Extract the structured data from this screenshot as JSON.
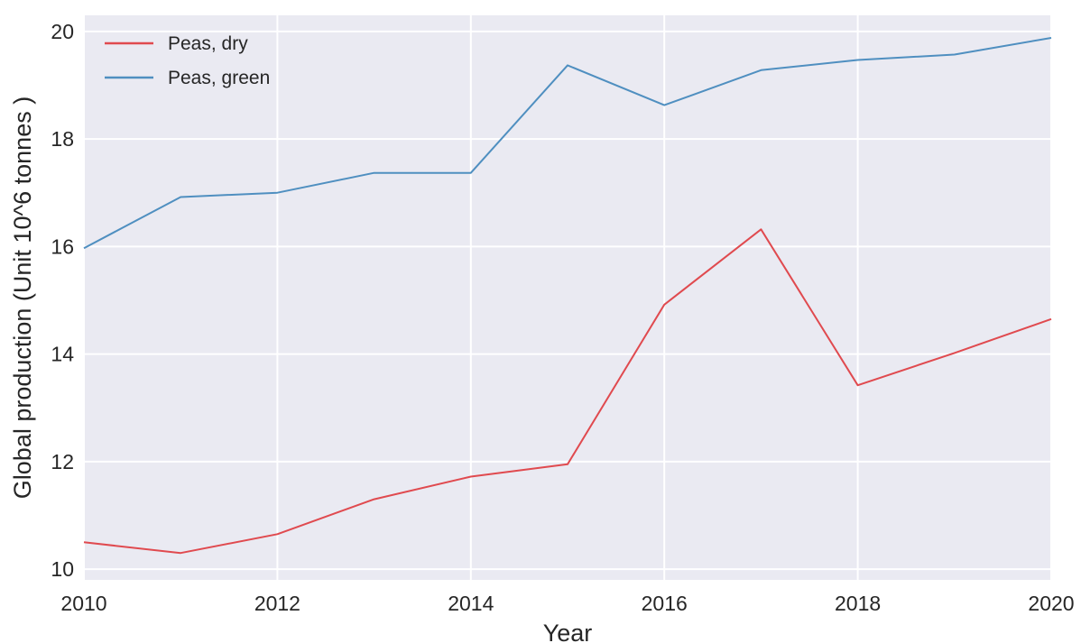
{
  "chart_data": {
    "type": "line",
    "title": "",
    "xlabel": "Year",
    "ylabel": "Global production (Unit 10^6 tonnes )",
    "xlim": [
      2010,
      2020
    ],
    "ylim": [
      9.8,
      20.3
    ],
    "x_ticks": [
      2010,
      2012,
      2014,
      2016,
      2018,
      2020
    ],
    "y_ticks": [
      10,
      12,
      14,
      16,
      18,
      20
    ],
    "x": [
      2010,
      2011,
      2012,
      2013,
      2014,
      2015,
      2016,
      2017,
      2018,
      2019,
      2020
    ],
    "series": [
      {
        "name": "Peas, dry",
        "color": "#e04a4f",
        "values": [
          10.5,
          10.3,
          10.65,
          11.3,
          11.72,
          11.95,
          14.92,
          16.32,
          13.42,
          14.02,
          14.65
        ]
      },
      {
        "name": "Peas, green",
        "color": "#4f8fc0",
        "values": [
          15.97,
          16.92,
          17.0,
          17.37,
          17.37,
          19.37,
          18.63,
          19.28,
          19.47,
          19.57,
          19.88
        ]
      }
    ],
    "grid": true,
    "legend_position": "top-left",
    "background_color": "#eaeaf2",
    "grid_color": "#ffffff"
  }
}
